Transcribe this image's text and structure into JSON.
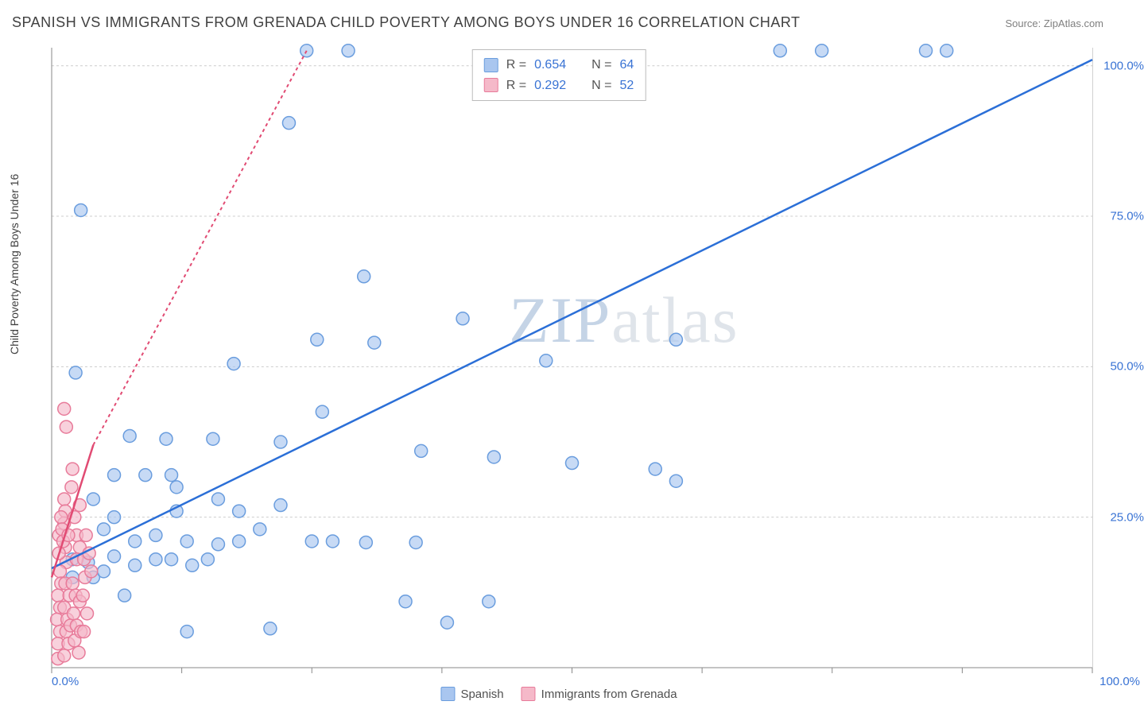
{
  "title": "SPANISH VS IMMIGRANTS FROM GRENADA CHILD POVERTY AMONG BOYS UNDER 16 CORRELATION CHART",
  "source_label": "Source: ZipAtlas.com",
  "ylabel": "Child Poverty Among Boys Under 16",
  "watermark": {
    "zip": "ZIP",
    "atlas": "atlas"
  },
  "chart": {
    "type": "scatter",
    "xlim": [
      0,
      100
    ],
    "ylim": [
      0,
      103
    ],
    "xtick_positions": [
      0,
      12.5,
      25,
      37.5,
      50,
      62.5,
      75,
      87.5,
      100
    ],
    "ytick_positions": [
      25,
      50,
      75,
      100
    ],
    "xtick_labels_shown": {
      "left": "0.0%",
      "right": "100.0%"
    },
    "ytick_labels": [
      "25.0%",
      "50.0%",
      "75.0%",
      "100.0%"
    ],
    "background_color": "#ffffff",
    "grid_color": "#cccccc",
    "axis_color": "#888888",
    "tick_label_color_blue": "#3973d4",
    "marker_radius": 8,
    "marker_stroke_width": 1.5,
    "series": [
      {
        "name": "Spanish",
        "fill_color": "#a9c6ef",
        "stroke_color": "#6a9dde",
        "opacity": 0.65,
        "trend_line": {
          "x1": 0,
          "y1": 16.5,
          "x2": 100,
          "y2": 101,
          "color": "#2b6fd7",
          "width": 2.5,
          "dash": "none",
          "extension": {
            "x1": 100,
            "y1": 101,
            "x2": 100,
            "y2": 101
          }
        },
        "points": [
          [
            24.5,
            102.5
          ],
          [
            28.5,
            102.5
          ],
          [
            70,
            102.5
          ],
          [
            74,
            102.5
          ],
          [
            84,
            102.5
          ],
          [
            86,
            102.5
          ],
          [
            22.8,
            90.5
          ],
          [
            2.8,
            76
          ],
          [
            30,
            65
          ],
          [
            39.5,
            58
          ],
          [
            25.5,
            54.5
          ],
          [
            31,
            54
          ],
          [
            60,
            54.5
          ],
          [
            2.3,
            49
          ],
          [
            17.5,
            50.5
          ],
          [
            47.5,
            51
          ],
          [
            26,
            42.5
          ],
          [
            7.5,
            38.5
          ],
          [
            11,
            38
          ],
          [
            15.5,
            38
          ],
          [
            22,
            37.5
          ],
          [
            35.5,
            36
          ],
          [
            42.5,
            35
          ],
          [
            50,
            34
          ],
          [
            58,
            33
          ],
          [
            6,
            32
          ],
          [
            9,
            32
          ],
          [
            11.5,
            32
          ],
          [
            12,
            30
          ],
          [
            60,
            31
          ],
          [
            4,
            28
          ],
          [
            6,
            25
          ],
          [
            12,
            26
          ],
          [
            16,
            28
          ],
          [
            18,
            26
          ],
          [
            22,
            27
          ],
          [
            20,
            23
          ],
          [
            5,
            23
          ],
          [
            8,
            21
          ],
          [
            10,
            22
          ],
          [
            13,
            21
          ],
          [
            16,
            20.5
          ],
          [
            18,
            21
          ],
          [
            25,
            21
          ],
          [
            27,
            21
          ],
          [
            30.2,
            20.8
          ],
          [
            35,
            20.8
          ],
          [
            2,
            18
          ],
          [
            3.5,
            17.5
          ],
          [
            6,
            18.5
          ],
          [
            8,
            17
          ],
          [
            10,
            18
          ],
          [
            11.5,
            18
          ],
          [
            13.5,
            17
          ],
          [
            15,
            18
          ],
          [
            2,
            15
          ],
          [
            4,
            15
          ],
          [
            5,
            16
          ],
          [
            34,
            11
          ],
          [
            38,
            7.5
          ],
          [
            42,
            11
          ],
          [
            21,
            6.5
          ],
          [
            13,
            6
          ],
          [
            7,
            12
          ]
        ]
      },
      {
        "name": "Immigrants from Grenada",
        "fill_color": "#f5b9c9",
        "stroke_color": "#e87b9a",
        "opacity": 0.65,
        "trend_line": {
          "x1": 0,
          "y1": 15,
          "x2": 4,
          "y2": 37,
          "color": "#e14b73",
          "width": 2.5,
          "dash": "none",
          "extension": {
            "x1": 4,
            "y1": 37,
            "x2": 24.5,
            "y2": 102.5,
            "dash": "4,4"
          }
        },
        "points": [
          [
            1.2,
            43
          ],
          [
            1.4,
            40
          ],
          [
            1.2,
            28
          ],
          [
            1.3,
            26
          ],
          [
            1.2,
            24
          ],
          [
            1.3,
            20
          ],
          [
            1.4,
            17.5
          ],
          [
            1.9,
            30
          ],
          [
            2.2,
            25
          ],
          [
            2.7,
            27
          ],
          [
            2.4,
            22
          ],
          [
            2.7,
            20
          ],
          [
            2.4,
            18
          ],
          [
            0.7,
            19
          ],
          [
            0.8,
            16
          ],
          [
            0.9,
            14
          ],
          [
            0.6,
            12
          ],
          [
            0.8,
            10
          ],
          [
            0.5,
            8
          ],
          [
            0.8,
            6
          ],
          [
            0.6,
            4
          ],
          [
            0.6,
            1.5
          ],
          [
            1.3,
            14
          ],
          [
            1.2,
            10
          ],
          [
            1.5,
            8
          ],
          [
            1.4,
            6
          ],
          [
            1.6,
            4
          ],
          [
            1.2,
            2
          ],
          [
            1.8,
            7
          ],
          [
            1.7,
            12
          ],
          [
            2.0,
            14
          ],
          [
            2.3,
            12
          ],
          [
            2.1,
            9
          ],
          [
            2.7,
            11
          ],
          [
            2.4,
            7
          ],
          [
            2.2,
            4.5
          ],
          [
            2.8,
            6
          ],
          [
            2.6,
            2.5
          ],
          [
            3.1,
            18
          ],
          [
            3.2,
            15
          ],
          [
            3.0,
            12
          ],
          [
            3.4,
            9
          ],
          [
            3.1,
            6
          ],
          [
            3.6,
            19
          ],
          [
            3.3,
            22
          ],
          [
            3.8,
            16
          ],
          [
            0.7,
            22
          ],
          [
            0.9,
            25
          ],
          [
            1.0,
            23
          ],
          [
            1.1,
            21
          ],
          [
            1.6,
            22
          ],
          [
            2.0,
            33
          ]
        ]
      }
    ]
  },
  "legend_top": {
    "border_color": "#bbbbbb",
    "rows": [
      {
        "swatch_fill": "#a9c6ef",
        "swatch_border": "#6a9dde",
        "r_label": "R =",
        "r_value": "0.654",
        "n_label": "N =",
        "n_value": "64"
      },
      {
        "swatch_fill": "#f5b9c9",
        "swatch_border": "#e87b9a",
        "r_label": "R =",
        "r_value": "0.292",
        "n_label": "N =",
        "n_value": "52"
      }
    ],
    "label_color": "#555555",
    "value_color": "#3973d4"
  },
  "legend_bottom": {
    "items": [
      {
        "swatch_fill": "#a9c6ef",
        "swatch_border": "#6a9dde",
        "label": "Spanish"
      },
      {
        "swatch_fill": "#f5b9c9",
        "swatch_border": "#e87b9a",
        "label": "Immigrants from Grenada"
      }
    ]
  }
}
